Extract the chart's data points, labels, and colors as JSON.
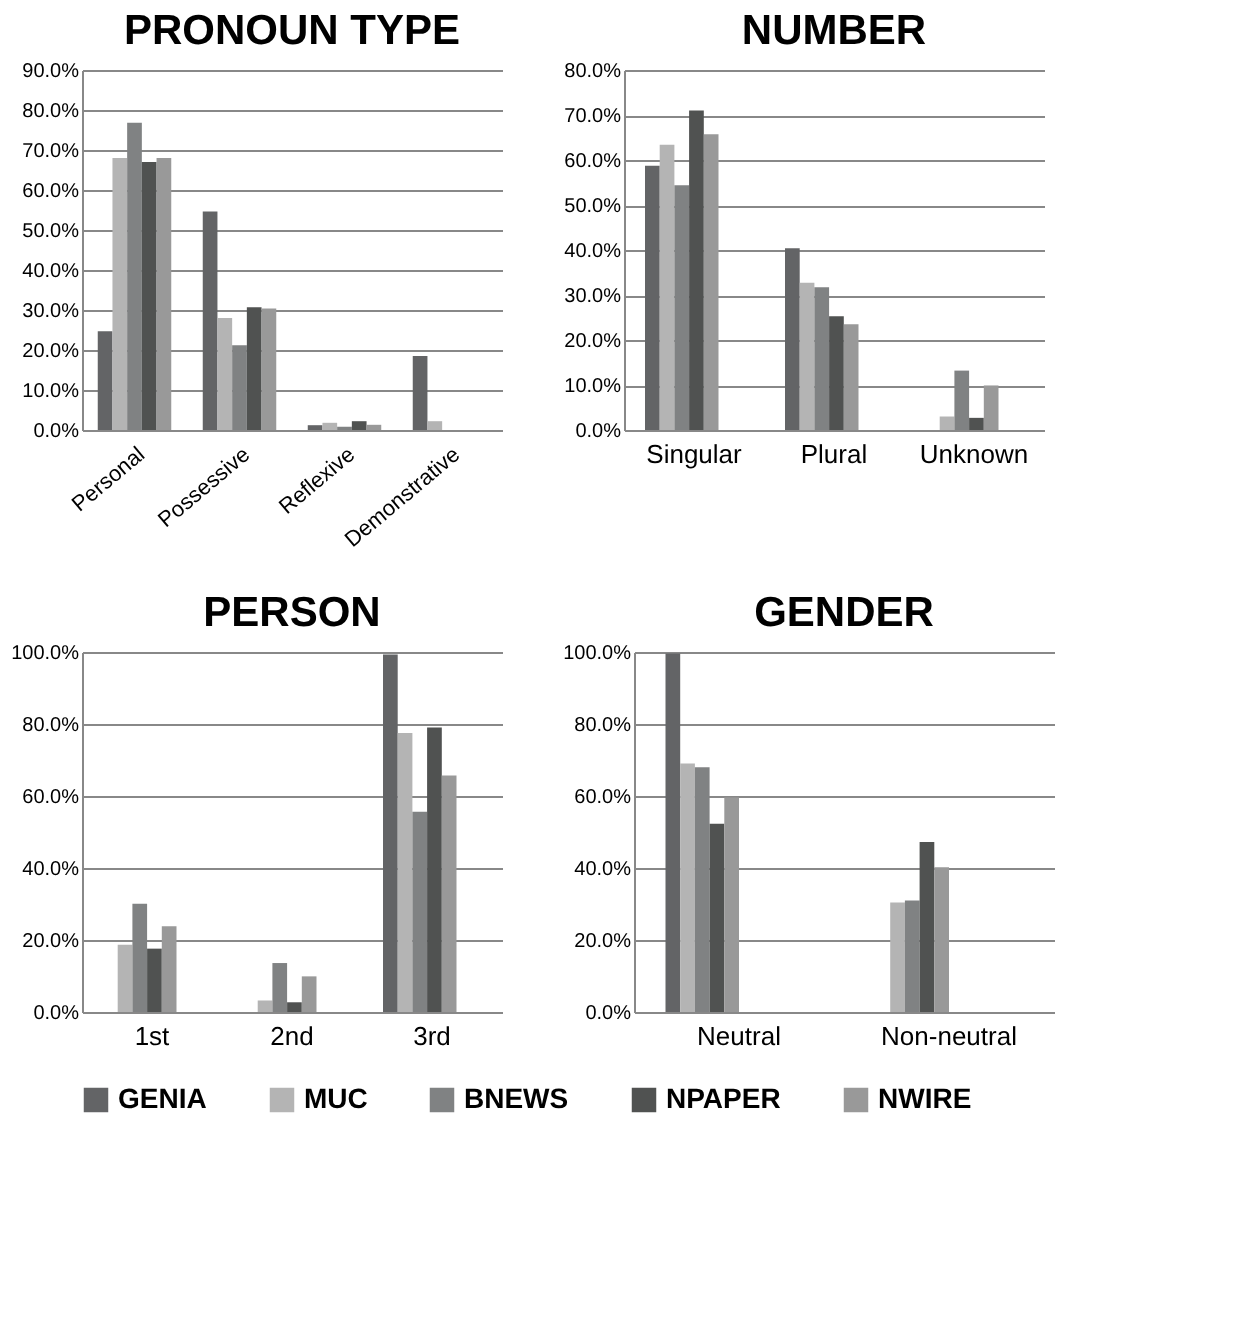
{
  "chart_data": [
    {
      "type": "bar",
      "title": "PRONOUN TYPE",
      "categories": [
        "Personal",
        "Possessive",
        "Reflexive",
        "Demonstrative"
      ],
      "series": [
        {
          "name": "GENIA",
          "color": "#636466",
          "values": [
            24.7,
            54.6,
            1.2,
            18.5
          ]
        },
        {
          "name": "MUC",
          "color": "#b4b4b4",
          "values": [
            68,
            28,
            1.8,
            2.2
          ]
        },
        {
          "name": "BNEWS",
          "color": "#808283",
          "values": [
            76.8,
            21.2,
            0.8,
            null
          ]
        },
        {
          "name": "NPAPER",
          "color": "#505251",
          "values": [
            67,
            30.7,
            2.2,
            null
          ]
        },
        {
          "name": "NWIRE",
          "color": "#999999",
          "values": [
            68,
            30.4,
            1.3,
            null
          ]
        }
      ],
      "ylim": [
        0,
        90
      ],
      "yticks": [
        {
          "value": 0,
          "label": "0.0%"
        },
        {
          "value": 10,
          "label": "10.0%"
        },
        {
          "value": 20,
          "label": "20.0%"
        },
        {
          "value": 30,
          "label": "30.0%"
        },
        {
          "value": 40,
          "label": "40.0%"
        },
        {
          "value": 50,
          "label": "50.0%"
        },
        {
          "value": 60,
          "label": "60.0%"
        },
        {
          "value": 70,
          "label": "70.0%"
        },
        {
          "value": 80,
          "label": "80.0%"
        },
        {
          "value": 90,
          "label": "90.0%"
        }
      ],
      "grid": "y",
      "legend": "bottom"
    },
    {
      "type": "bar",
      "title": "NUMBER",
      "categories": [
        "Singular",
        "Plural",
        "Unknown"
      ],
      "series": [
        {
          "name": "GENIA",
          "color": "#636466",
          "values": [
            58.7,
            40.4,
            0
          ]
        },
        {
          "name": "MUC",
          "color": "#b4b4b4",
          "values": [
            63.4,
            32.7,
            3.0
          ]
        },
        {
          "name": "BNEWS",
          "color": "#808283",
          "values": [
            54.4,
            31.7,
            13.2
          ]
        },
        {
          "name": "NPAPER",
          "color": "#505251",
          "values": [
            71,
            25.3,
            2.7
          ]
        },
        {
          "name": "NWIRE",
          "color": "#999999",
          "values": [
            65.7,
            23.5,
            9.9
          ]
        }
      ],
      "ylim": [
        0,
        80
      ],
      "yticks": [
        {
          "value": 0,
          "label": "0.0%"
        },
        {
          "value": 10,
          "label": "10.0%"
        },
        {
          "value": 20,
          "label": "20.0%"
        },
        {
          "value": 30,
          "label": "30.0%"
        },
        {
          "value": 40,
          "label": "40.0%"
        },
        {
          "value": 50,
          "label": "50.0%"
        },
        {
          "value": 60,
          "label": "60.0%"
        },
        {
          "value": 70,
          "label": "70.0%"
        },
        {
          "value": 80,
          "label": "80.0%"
        }
      ],
      "grid": "y",
      "legend": "bottom"
    },
    {
      "type": "bar",
      "title": "PERSON",
      "categories": [
        "1st",
        "2nd",
        "3rd"
      ],
      "series": [
        {
          "name": "GENIA",
          "color": "#636466",
          "values": [
            0,
            0,
            99.3
          ]
        },
        {
          "name": "MUC",
          "color": "#b4b4b4",
          "values": [
            18.7,
            3.2,
            77.5
          ]
        },
        {
          "name": "BNEWS",
          "color": "#808283",
          "values": [
            30.1,
            13.6,
            55.6
          ]
        },
        {
          "name": "NPAPER",
          "color": "#505251",
          "values": [
            17.6,
            2.7,
            79
          ]
        },
        {
          "name": "NWIRE",
          "color": "#999999",
          "values": [
            23.8,
            9.9,
            65.7
          ]
        }
      ],
      "ylim": [
        0,
        100
      ],
      "yticks": [
        {
          "value": 0,
          "label": "0.0%"
        },
        {
          "value": 20,
          "label": "20.0%"
        },
        {
          "value": 40,
          "label": "40.0%"
        },
        {
          "value": 60,
          "label": "60.0%"
        },
        {
          "value": 80,
          "label": "80.0%"
        },
        {
          "value": 100,
          "label": "100.0%"
        }
      ],
      "grid": "y",
      "legend": "bottom"
    },
    {
      "type": "bar",
      "title": "GENDER",
      "categories": [
        "Neutral",
        "Non-neutral"
      ],
      "series": [
        {
          "name": "GENIA",
          "color": "#636466",
          "values": [
            99.6,
            0
          ]
        },
        {
          "name": "MUC",
          "color": "#b4b4b4",
          "values": [
            69,
            30.4
          ]
        },
        {
          "name": "BNEWS",
          "color": "#808283",
          "values": [
            68,
            31
          ]
        },
        {
          "name": "NPAPER",
          "color": "#505251",
          "values": [
            52.3,
            47.2
          ]
        },
        {
          "name": "NWIRE",
          "color": "#999999",
          "values": [
            59.6,
            40.2
          ]
        }
      ],
      "ylim": [
        0,
        100
      ],
      "yticks": [
        {
          "value": 0,
          "label": "0.0%"
        },
        {
          "value": 20,
          "label": "20.0%"
        },
        {
          "value": 40,
          "label": "40.0%"
        },
        {
          "value": 60,
          "label": "60.0%"
        },
        {
          "value": 80,
          "label": "80.0%"
        },
        {
          "value": 100,
          "label": "100.0%"
        }
      ],
      "grid": "y",
      "legend": "bottom"
    }
  ]
}
